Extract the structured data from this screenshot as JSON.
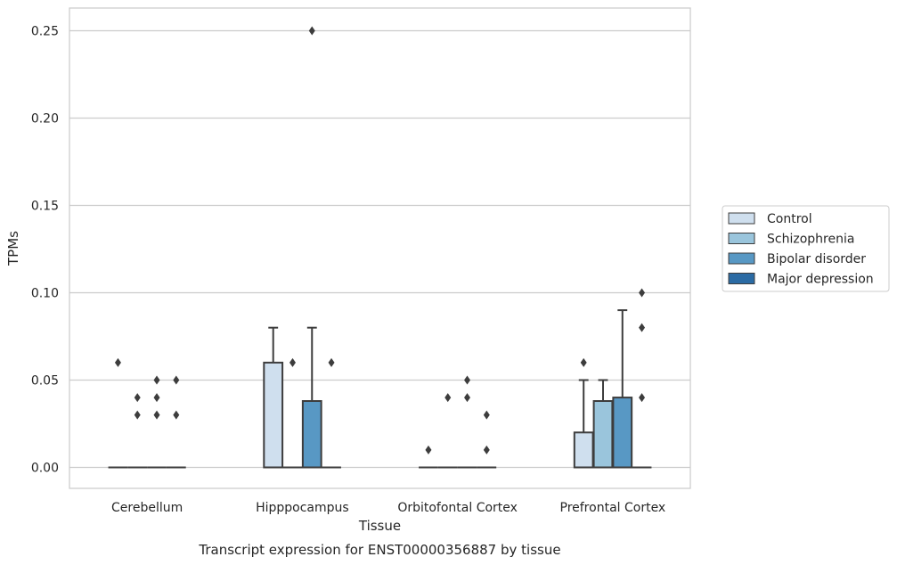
{
  "chart_data": {
    "type": "box",
    "title": "Transcript expression for ENST00000356887 by tissue",
    "xlabel": "Tissue",
    "ylabel": "TPMs",
    "ylim": [
      -0.012,
      0.263
    ],
    "yticks": [
      0.0,
      0.05,
      0.1,
      0.15,
      0.2,
      0.25
    ],
    "ytick_labels": [
      "0.00",
      "0.05",
      "0.10",
      "0.15",
      "0.20",
      "0.25"
    ],
    "grid": "horizontal",
    "legend_position": "right",
    "categories": [
      "Cerebellum",
      "Hipppocampus",
      "Orbitofontal Cortex",
      "Prefrontal Cortex"
    ],
    "series": [
      {
        "name": "Control",
        "color": "#cfdfee",
        "boxes": [
          {
            "q1": 0.0,
            "median": 0.0,
            "q3": 0.0,
            "whislo": 0.0,
            "whishi": 0.0,
            "fliers": [
              0.06
            ]
          },
          {
            "q1": 0.0,
            "median": 0.0,
            "q3": 0.06,
            "whislo": 0.0,
            "whishi": 0.08,
            "fliers": []
          },
          {
            "q1": 0.0,
            "median": 0.0,
            "q3": 0.0,
            "whislo": 0.0,
            "whishi": 0.0,
            "fliers": [
              0.01
            ]
          },
          {
            "q1": 0.0,
            "median": 0.0,
            "q3": 0.02,
            "whislo": 0.0,
            "whishi": 0.05,
            "fliers": [
              0.06
            ]
          }
        ]
      },
      {
        "name": "Schizophrenia",
        "color": "#9ac5dc",
        "boxes": [
          {
            "q1": 0.0,
            "median": 0.0,
            "q3": 0.0,
            "whislo": 0.0,
            "whishi": 0.0,
            "fliers": [
              0.03,
              0.04
            ]
          },
          {
            "q1": 0.0,
            "median": 0.0,
            "q3": 0.0,
            "whislo": 0.0,
            "whishi": 0.0,
            "fliers": [
              0.06
            ]
          },
          {
            "q1": 0.0,
            "median": 0.0,
            "q3": 0.0,
            "whislo": 0.0,
            "whishi": 0.0,
            "fliers": [
              0.04
            ]
          },
          {
            "q1": 0.0,
            "median": 0.0,
            "q3": 0.038,
            "whislo": 0.0,
            "whishi": 0.05,
            "fliers": []
          }
        ]
      },
      {
        "name": "Bipolar disorder",
        "color": "#5898c4",
        "boxes": [
          {
            "q1": 0.0,
            "median": 0.0,
            "q3": 0.0,
            "whislo": 0.0,
            "whishi": 0.0,
            "fliers": [
              0.03,
              0.04,
              0.05
            ]
          },
          {
            "q1": 0.0,
            "median": 0.0,
            "q3": 0.038,
            "whislo": 0.0,
            "whishi": 0.08,
            "fliers": [
              0.25
            ]
          },
          {
            "q1": 0.0,
            "median": 0.0,
            "q3": 0.0,
            "whislo": 0.0,
            "whishi": 0.0,
            "fliers": [
              0.04,
              0.05
            ]
          },
          {
            "q1": 0.0,
            "median": 0.0,
            "q3": 0.04,
            "whislo": 0.0,
            "whishi": 0.09,
            "fliers": []
          }
        ]
      },
      {
        "name": "Major depression",
        "color": "#2b6ba4",
        "boxes": [
          {
            "q1": 0.0,
            "median": 0.0,
            "q3": 0.0,
            "whislo": 0.0,
            "whishi": 0.0,
            "fliers": [
              0.03,
              0.05
            ]
          },
          {
            "q1": 0.0,
            "median": 0.0,
            "q3": 0.0,
            "whislo": 0.0,
            "whishi": 0.0,
            "fliers": [
              0.06
            ]
          },
          {
            "q1": 0.0,
            "median": 0.0,
            "q3": 0.0,
            "whislo": 0.0,
            "whishi": 0.0,
            "fliers": [
              0.01,
              0.03
            ]
          },
          {
            "q1": 0.0,
            "median": 0.0,
            "q3": 0.0,
            "whislo": 0.0,
            "whishi": 0.0,
            "fliers": [
              0.04,
              0.08,
              0.1
            ]
          }
        ]
      }
    ]
  }
}
